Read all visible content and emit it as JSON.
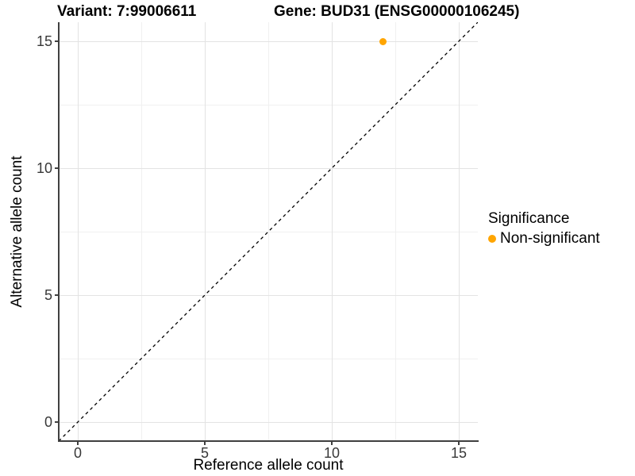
{
  "titles": {
    "variant": "Variant: 7:99006611",
    "gene": "Gene: BUD31 (ENSG00000106245)"
  },
  "axes": {
    "x_label": "Reference allele count",
    "y_label": "Alternative allele count"
  },
  "legend": {
    "title": "Significance",
    "items": [
      {
        "label": "Non-significant",
        "color": "#FFA500"
      }
    ]
  },
  "chart_data": {
    "type": "scatter",
    "title": "Variant: 7:99006611   Gene: BUD31 (ENSG00000106245)",
    "xlabel": "Reference allele count",
    "ylabel": "Alternative allele count",
    "xlim": [
      -0.75,
      15.75
    ],
    "ylim": [
      -0.75,
      15.75
    ],
    "x_ticks": [
      0,
      5,
      10,
      15
    ],
    "y_ticks": [
      0,
      5,
      10,
      15
    ],
    "x_minor_ticks": [
      2.5,
      7.5,
      12.5
    ],
    "y_minor_ticks": [
      2.5,
      7.5,
      12.5
    ],
    "grid": true,
    "legend_position": "right",
    "series": [
      {
        "name": "Non-significant",
        "color": "#FFA500",
        "points": [
          {
            "x": 12,
            "y": 15
          }
        ]
      }
    ],
    "reference_line": {
      "kind": "identity",
      "style": "dashed",
      "from": [
        -0.75,
        -0.75
      ],
      "to": [
        15.75,
        15.75
      ],
      "color": "#000000"
    }
  },
  "colors": {
    "point": "#FFA500",
    "grid_major": "#e3e3e3",
    "grid_minor": "#f0f0f0",
    "axis_line": "#404040",
    "tick_label": "#383838",
    "background": "#ffffff"
  }
}
